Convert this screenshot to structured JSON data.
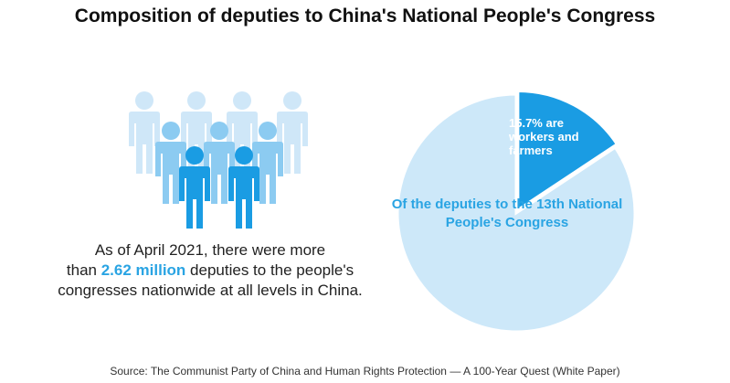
{
  "title": "Composition of deputies to China's National People's Congress",
  "blurb": {
    "line1": "As of April 2021, there were more",
    "line2_pre": "than",
    "highlight": "2.62 million",
    "line2_post": "deputies to the people's",
    "line3": "congresses nationwide at all levels in China."
  },
  "icons": {
    "people": "people-group-icon"
  },
  "chart_data": {
    "type": "pie",
    "slices": [
      {
        "label": "15.7% are workers and farmers",
        "value": 15.7,
        "color": "#1a9ce3"
      },
      {
        "label": "",
        "value": 84.3,
        "color": "#cde8f9"
      }
    ],
    "caption": "Of the deputies to the 13th National People's Congress"
  },
  "source": "Source: The Communist Party of China and Human Rights Protection — A 100-Year Quest (White Paper)"
}
